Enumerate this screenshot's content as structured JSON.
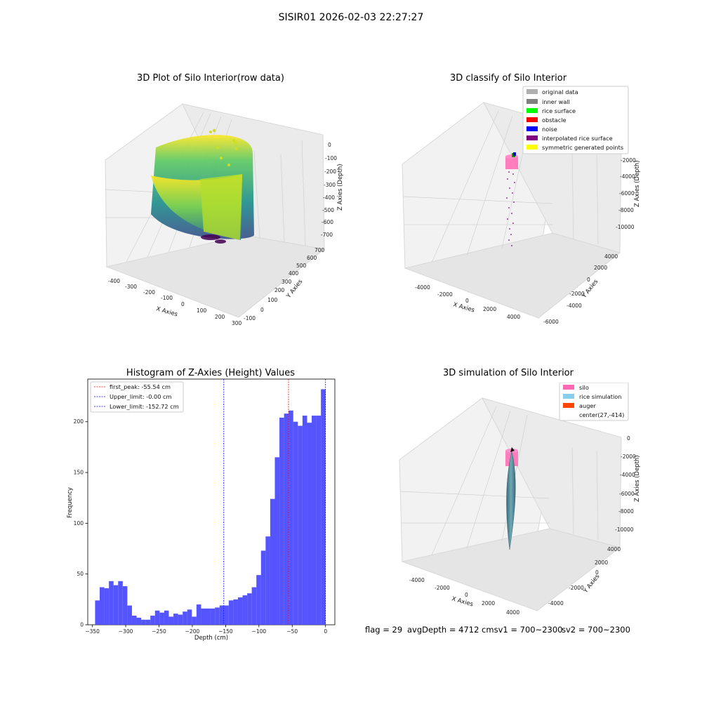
{
  "figure": {
    "suptitle": "SISIR01 2026-02-03 22:27:27",
    "footer": {
      "flag": "flag = 29",
      "avg": "avgDepth = 4712 cmsv1 = 700~2300",
      "sv2": "sv2 = 700~2300"
    }
  },
  "panels": {
    "raw": {
      "title": "3D Plot of Silo Interior(row data)",
      "xlabel": "X Axies",
      "ylabel": "Y Axies",
      "zlabel": "Z Axies (Depth)",
      "xticks": [
        "-400",
        "-300",
        "-200",
        "-100",
        "0",
        "100",
        "200",
        "300"
      ],
      "yticks": [
        "-100",
        "0",
        "100",
        "200",
        "300",
        "400",
        "500",
        "600",
        "700"
      ],
      "zticks": [
        "0",
        "-100",
        "-200",
        "-300",
        "-400",
        "-500",
        "-600",
        "-700"
      ]
    },
    "classify": {
      "title": "3D classify of Silo Interior",
      "xlabel": "X Axies",
      "ylabel": "Y Axies",
      "zlabel": "Z Axies (Depth)",
      "xticks": [
        "-4000",
        "-2000",
        "0",
        "2000",
        "4000"
      ],
      "yticks": [
        "-6000",
        "-4000",
        "-2000",
        "0",
        "2000",
        "4000"
      ],
      "zticks": [
        "0",
        "-2000",
        "-4000",
        "-6000",
        "-8000",
        "-10000"
      ],
      "legend": [
        {
          "label": "original data",
          "color": "#b0b0b0"
        },
        {
          "label": "inner wall",
          "color": "#808080"
        },
        {
          "label": "rice surface",
          "color": "#00ff00"
        },
        {
          "label": "obstacle",
          "color": "#ff0000"
        },
        {
          "label": "noise",
          "color": "#0000ff"
        },
        {
          "label": "interpolated rice surface",
          "color": "#800080"
        },
        {
          "label": "symmetric generated points",
          "color": "#ffff00"
        }
      ]
    },
    "simulation": {
      "title": "3D simulation of Silo Interior",
      "xlabel": "X Axies",
      "ylabel": "Y Axies",
      "zlabel": "Z Axies (Depth)",
      "xticks": [
        "-4000",
        "-2000",
        "0",
        "2000",
        "4000"
      ],
      "yticks": [
        "-4000",
        "-2000",
        "0",
        "2000",
        "4000"
      ],
      "zticks": [
        "0",
        "-2000",
        "-4000",
        "-6000",
        "-8000",
        "-10000"
      ],
      "legend": [
        {
          "label": "silo",
          "color": "#ff69b4"
        },
        {
          "label": "rice simulation",
          "color": "#87ceeb"
        },
        {
          "label": "auger",
          "color": "#ff4500"
        },
        {
          "label": "center(27,-414)",
          "color": ""
        }
      ]
    }
  },
  "chart_data": {
    "type": "bar",
    "title": "Histogram of Z-Axies (Height) Values",
    "xlabel": "Depth (cm)",
    "ylabel": "Frequency",
    "xlim": [
      -357,
      14
    ],
    "ylim": [
      0,
      242
    ],
    "xticks": [
      -350,
      -300,
      -250,
      -200,
      -150,
      -100,
      -50,
      0
    ],
    "yticks": [
      0,
      50,
      100,
      150,
      200
    ],
    "bin_start": -346,
    "bin_width": 6.92,
    "values": [
      24,
      37,
      36,
      43,
      39,
      43,
      38,
      19,
      9,
      7,
      5,
      5,
      9,
      14,
      12,
      14,
      8,
      11,
      10,
      13,
      15,
      8,
      20,
      16,
      16,
      16,
      17,
      19,
      19,
      24,
      25,
      27,
      29,
      31,
      37,
      49,
      73,
      87,
      124,
      165,
      204,
      208,
      211,
      200,
      196,
      206,
      199,
      206,
      206,
      232
    ],
    "color": "#4c4cff",
    "vlines": [
      {
        "label": "first_peak: -55.54 cm",
        "value": -55.54,
        "color": "#ff0000"
      },
      {
        "label": "Upper_limit: -0.00 cm",
        "value": -0.0,
        "color": "#0000ff"
      },
      {
        "label": "Lower_limit: -152.72 cm",
        "value": -152.72,
        "color": "#0000ff"
      }
    ]
  }
}
